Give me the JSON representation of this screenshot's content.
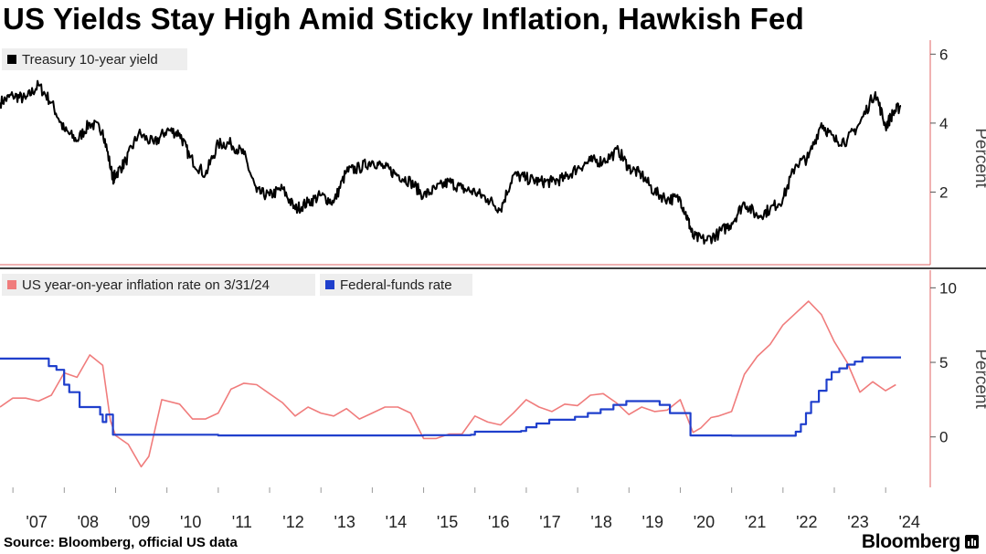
{
  "title": "US Yields Stay High Amid Sticky Inflation, Hawkish Fed",
  "source": "Source: Bloomberg, official US data",
  "brand": "Bloomberg",
  "colors": {
    "yield": "#000000",
    "inflation": "#f07c7c",
    "fedfunds": "#1f3fcc",
    "axis": "#e06666",
    "legend_bg": "#eeeeee"
  },
  "x_axis": {
    "ticks": [
      "'07",
      "'08",
      "'09",
      "'10",
      "'11",
      "'12",
      "'13",
      "'14",
      "'15",
      "'16",
      "'17",
      "'18",
      "'19",
      "'20",
      "'21",
      "'22",
      "'23",
      "'24"
    ],
    "tick_years": [
      2007,
      2008,
      2009,
      2010,
      2011,
      2012,
      2013,
      2014,
      2015,
      2016,
      2017,
      2018,
      2019,
      2020,
      2021,
      2022,
      2023,
      2024
    ],
    "range": [
      2006.75,
      2024.55
    ]
  },
  "chart_data": [
    {
      "type": "line",
      "title": "Treasury 10-year yield",
      "ylabel": "Percent",
      "ylim": [
        0,
        6.3
      ],
      "yticks": [
        2,
        4,
        6
      ],
      "series": [
        {
          "name": "Treasury 10-year yield",
          "x": [
            2006.75,
            2007.0,
            2007.25,
            2007.5,
            2007.75,
            2008.0,
            2008.25,
            2008.5,
            2008.75,
            2008.95,
            2009.0,
            2009.2,
            2009.45,
            2009.75,
            2010.0,
            2010.25,
            2010.45,
            2010.75,
            2011.0,
            2011.25,
            2011.5,
            2011.75,
            2012.0,
            2012.25,
            2012.5,
            2012.75,
            2013.0,
            2013.25,
            2013.5,
            2013.75,
            2014.0,
            2014.25,
            2014.5,
            2014.75,
            2015.0,
            2015.25,
            2015.5,
            2015.75,
            2016.0,
            2016.25,
            2016.5,
            2016.75,
            2017.0,
            2017.25,
            2017.5,
            2017.75,
            2018.0,
            2018.25,
            2018.5,
            2018.8,
            2019.0,
            2019.25,
            2019.5,
            2019.75,
            2020.0,
            2020.15,
            2020.25,
            2020.5,
            2020.75,
            2021.0,
            2021.25,
            2021.5,
            2021.75,
            2022.0,
            2022.25,
            2022.5,
            2022.75,
            2023.0,
            2023.25,
            2023.5,
            2023.8,
            2024.0,
            2024.15,
            2024.3
          ],
          "y": [
            4.6,
            4.8,
            4.7,
            5.1,
            4.6,
            3.8,
            3.5,
            4.0,
            3.8,
            2.4,
            2.5,
            2.9,
            3.7,
            3.4,
            3.8,
            3.7,
            3.0,
            2.5,
            3.4,
            3.4,
            3.1,
            2.0,
            1.9,
            2.1,
            1.5,
            1.7,
            1.9,
            1.7,
            2.6,
            2.7,
            2.9,
            2.7,
            2.5,
            2.3,
            1.9,
            2.1,
            2.3,
            2.1,
            2.0,
            1.8,
            1.5,
            2.5,
            2.4,
            2.3,
            2.3,
            2.4,
            2.7,
            2.9,
            2.9,
            3.2,
            2.7,
            2.5,
            2.0,
            1.8,
            1.8,
            1.2,
            0.7,
            0.6,
            0.8,
            1.1,
            1.7,
            1.3,
            1.5,
            1.8,
            2.8,
            3.0,
            4.0,
            3.5,
            3.5,
            4.0,
            4.9,
            3.9,
            4.3,
            4.5
          ]
        }
      ]
    },
    {
      "type": "line",
      "title": "",
      "ylabel": "Percent",
      "ylim": [
        -3.2,
        11
      ],
      "yticks": [
        0,
        5,
        10
      ],
      "series": [
        {
          "name": "US year-on-year inflation rate on 3/31/24",
          "x": [
            2006.75,
            2007.0,
            2007.25,
            2007.5,
            2007.75,
            2008.0,
            2008.25,
            2008.5,
            2008.75,
            2008.9,
            2009.0,
            2009.25,
            2009.5,
            2009.65,
            2009.9,
            2010.25,
            2010.5,
            2010.75,
            2011.0,
            2011.25,
            2011.5,
            2011.75,
            2012.0,
            2012.25,
            2012.5,
            2012.75,
            2013.0,
            2013.25,
            2013.5,
            2013.75,
            2014.0,
            2014.25,
            2014.5,
            2014.75,
            2015.0,
            2015.25,
            2015.5,
            2015.75,
            2016.0,
            2016.25,
            2016.5,
            2016.75,
            2017.0,
            2017.25,
            2017.5,
            2017.75,
            2018.0,
            2018.25,
            2018.5,
            2018.75,
            2019.0,
            2019.25,
            2019.5,
            2019.75,
            2020.0,
            2020.25,
            2020.4,
            2020.6,
            2020.75,
            2021.0,
            2021.25,
            2021.5,
            2021.75,
            2022.0,
            2022.25,
            2022.5,
            2022.75,
            2023.0,
            2023.25,
            2023.5,
            2023.75,
            2024.0,
            2024.2
          ],
          "y": [
            2.0,
            2.6,
            2.6,
            2.4,
            2.8,
            4.3,
            4.0,
            5.5,
            4.8,
            1.1,
            0.1,
            -0.5,
            -2.0,
            -1.3,
            2.5,
            2.2,
            1.2,
            1.2,
            1.6,
            3.2,
            3.6,
            3.5,
            2.9,
            2.3,
            1.4,
            2.0,
            1.6,
            1.4,
            1.9,
            1.2,
            1.6,
            2.0,
            2.0,
            1.6,
            -0.1,
            -0.1,
            0.2,
            0.2,
            1.4,
            1.0,
            0.8,
            1.6,
            2.5,
            2.0,
            1.7,
            2.2,
            2.1,
            2.8,
            2.9,
            2.3,
            1.5,
            2.0,
            1.7,
            1.8,
            2.5,
            0.3,
            0.6,
            1.3,
            1.4,
            1.7,
            4.2,
            5.4,
            6.2,
            7.5,
            8.3,
            9.1,
            8.2,
            6.4,
            5.0,
            3.0,
            3.7,
            3.1,
            3.5
          ]
        },
        {
          "name": "Federal-funds rate",
          "x": [
            2006.75,
            2007.55,
            2007.7,
            2007.85,
            2008.0,
            2008.1,
            2008.3,
            2008.7,
            2008.75,
            2008.82,
            2008.95,
            2009.5,
            2010.0,
            2011.0,
            2012.0,
            2013.0,
            2014.0,
            2015.0,
            2015.92,
            2016.0,
            2016.9,
            2017.0,
            2017.2,
            2017.45,
            2017.7,
            2017.95,
            2018.2,
            2018.45,
            2018.7,
            2018.95,
            2019.5,
            2019.6,
            2019.8,
            2020.15,
            2020.2,
            2021.0,
            2022.15,
            2022.25,
            2022.35,
            2022.45,
            2022.55,
            2022.7,
            2022.85,
            2022.95,
            2023.1,
            2023.25,
            2023.4,
            2023.55,
            2024.3
          ],
          "y": [
            5.25,
            5.25,
            4.75,
            4.5,
            3.5,
            3.0,
            2.0,
            1.5,
            1.0,
            1.5,
            0.15,
            0.15,
            0.15,
            0.1,
            0.1,
            0.1,
            0.1,
            0.12,
            0.15,
            0.35,
            0.4,
            0.65,
            0.9,
            1.15,
            1.15,
            1.35,
            1.6,
            1.85,
            2.15,
            2.4,
            2.4,
            2.15,
            1.6,
            1.6,
            0.1,
            0.08,
            0.08,
            0.35,
            0.85,
            1.6,
            2.35,
            3.1,
            3.85,
            4.35,
            4.6,
            4.85,
            5.05,
            5.33,
            5.33
          ]
        }
      ]
    }
  ]
}
